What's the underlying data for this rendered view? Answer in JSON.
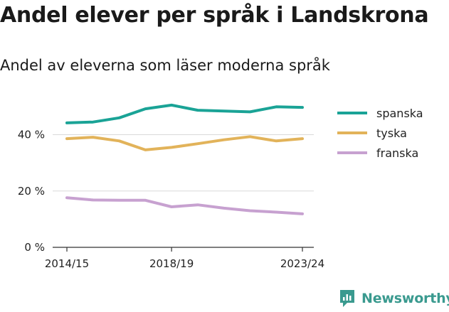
{
  "brand": {
    "name": "Newsworthy",
    "logo_icon": "newsworthy-chart-icon",
    "color": "#3a9a8f"
  },
  "chart_data": {
    "type": "line",
    "title": "Andel elever per språk i Landskrona",
    "subtitle": "Andel av eleverna som läser moderna språk",
    "xlabel": "",
    "ylabel": "",
    "x": [
      "2014/15",
      "2015/16",
      "2016/17",
      "2017/18",
      "2018/19",
      "2019/20",
      "2020/21",
      "2021/22",
      "2022/23",
      "2023/24"
    ],
    "x_tick_labels": [
      "2014/15",
      "2018/19",
      "2023/24"
    ],
    "y_ticks": [
      0,
      20,
      40
    ],
    "y_tick_labels": [
      "0 %",
      "20 %",
      "40 %"
    ],
    "ylim": [
      0,
      52
    ],
    "grid": "horizontal",
    "legend_position": "right",
    "series": [
      {
        "name": "spanska",
        "color": "#1aa396",
        "values": [
          44.2,
          44.5,
          46.0,
          49.2,
          50.5,
          48.7,
          48.4,
          48.1,
          49.9,
          49.7
        ]
      },
      {
        "name": "tyska",
        "color": "#e2b35a",
        "values": [
          38.6,
          39.1,
          37.8,
          34.6,
          35.5,
          36.8,
          38.2,
          39.3,
          37.8,
          38.6
        ]
      },
      {
        "name": "franska",
        "color": "#c7a1d0",
        "values": [
          17.6,
          16.8,
          16.7,
          16.7,
          14.4,
          15.1,
          13.9,
          13.0,
          12.5,
          11.9
        ]
      }
    ]
  }
}
